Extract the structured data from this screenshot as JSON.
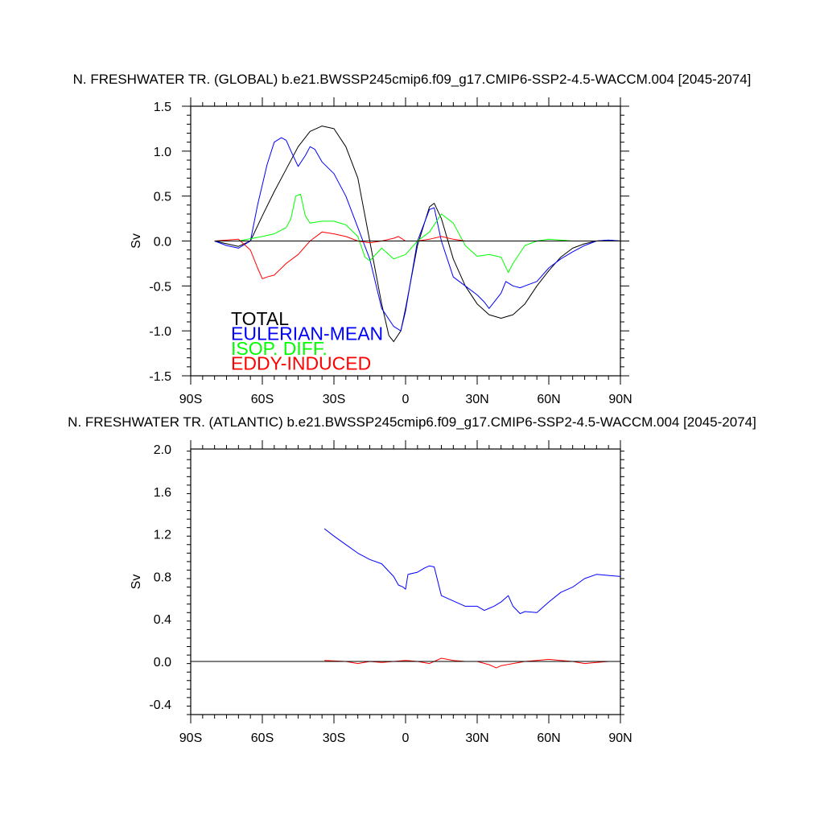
{
  "chart_data": [
    {
      "type": "line",
      "title": "N. FRESHWATER TR. (GLOBAL) b.e21.BWSSP245cmip6.f09_g17.CMIP6-SSP2-4.5-WACCM.004 [2045-2074]",
      "xlabel": "",
      "ylabel": "Sv",
      "xlim": [
        -90,
        90
      ],
      "ylim": [
        -1.5,
        1.5
      ],
      "xticks": [
        -90,
        -60,
        -30,
        0,
        30,
        60,
        90
      ],
      "xtick_labels": [
        "90S",
        "60S",
        "30S",
        "0",
        "30N",
        "60N",
        "90N"
      ],
      "yticks": [
        -1.5,
        -1.0,
        -0.5,
        0.0,
        0.5,
        1.0,
        1.5
      ],
      "ytick_labels": [
        "-1.5",
        "-1.0",
        "-0.5",
        "0.0",
        "0.5",
        "1.0",
        "1.5"
      ],
      "legend": "bottom-left",
      "series": [
        {
          "name": "TOTAL",
          "color": "#000000",
          "x": [
            -80,
            -75,
            -70,
            -65,
            -60,
            -55,
            -50,
            -45,
            -40,
            -35,
            -30,
            -25,
            -20,
            -15,
            -10,
            -7,
            -5,
            -2,
            0,
            5,
            10,
            12,
            15,
            20,
            25,
            30,
            35,
            40,
            45,
            50,
            55,
            60,
            65,
            70,
            75,
            80,
            85,
            90
          ],
          "y": [
            0.0,
            -0.03,
            -0.06,
            0.0,
            0.28,
            0.55,
            0.8,
            1.05,
            1.22,
            1.28,
            1.25,
            1.05,
            0.7,
            0.0,
            -0.7,
            -1.05,
            -1.12,
            -1.0,
            -0.75,
            -0.05,
            0.38,
            0.42,
            0.25,
            -0.2,
            -0.5,
            -0.7,
            -0.82,
            -0.86,
            -0.82,
            -0.7,
            -0.5,
            -0.33,
            -0.18,
            -0.08,
            -0.03,
            0.0,
            0.01,
            0.0
          ]
        },
        {
          "name": "EULERIAN-MEAN",
          "color": "#0000ff",
          "x": [
            -80,
            -75,
            -70,
            -65,
            -62,
            -58,
            -55,
            -52,
            -50,
            -48,
            -45,
            -42,
            -40,
            -38,
            -35,
            -30,
            -25,
            -20,
            -15,
            -10,
            -5,
            -2,
            0,
            5,
            10,
            12,
            15,
            20,
            25,
            30,
            33,
            35,
            38,
            40,
            42,
            45,
            48,
            50,
            55,
            60,
            65,
            70,
            75,
            80,
            85,
            90
          ],
          "y": [
            0.0,
            -0.05,
            -0.08,
            0.0,
            0.4,
            0.85,
            1.1,
            1.15,
            1.12,
            1.0,
            0.83,
            0.95,
            1.05,
            1.02,
            0.88,
            0.75,
            0.5,
            0.15,
            -0.2,
            -0.75,
            -0.95,
            -1.0,
            -0.78,
            0.0,
            0.35,
            0.37,
            0.0,
            -0.4,
            -0.5,
            -0.6,
            -0.68,
            -0.75,
            -0.65,
            -0.58,
            -0.45,
            -0.5,
            -0.52,
            -0.5,
            -0.45,
            -0.3,
            -0.2,
            -0.12,
            -0.05,
            0.0,
            0.01,
            0.0
          ]
        },
        {
          "name": "ISOP. DIFF.",
          "color": "#00ff00",
          "x": [
            -80,
            -70,
            -60,
            -55,
            -50,
            -48,
            -46,
            -44,
            -42,
            -40,
            -35,
            -30,
            -25,
            -20,
            -17,
            -15,
            -10,
            -5,
            0,
            5,
            10,
            15,
            20,
            25,
            30,
            35,
            40,
            43,
            45,
            50,
            55,
            60,
            70,
            80,
            90
          ],
          "y": [
            0.0,
            0.0,
            0.05,
            0.08,
            0.15,
            0.25,
            0.5,
            0.52,
            0.28,
            0.2,
            0.22,
            0.22,
            0.18,
            0.05,
            -0.18,
            -0.22,
            -0.08,
            -0.2,
            -0.15,
            0.0,
            0.1,
            0.3,
            0.2,
            -0.05,
            -0.17,
            -0.15,
            -0.18,
            -0.35,
            -0.25,
            -0.05,
            0.0,
            0.02,
            0.0,
            0.0,
            0.0
          ]
        },
        {
          "name": "EDDY-INDUCED",
          "color": "#ff0000",
          "x": [
            -80,
            -70,
            -65,
            -62,
            -60,
            -58,
            -55,
            -50,
            -45,
            -40,
            -35,
            -30,
            -25,
            -20,
            -15,
            -10,
            -5,
            -3,
            0,
            5,
            10,
            15,
            20,
            25,
            30,
            40,
            50,
            60,
            70,
            80,
            90
          ],
          "y": [
            0.0,
            0.02,
            -0.1,
            -0.3,
            -0.42,
            -0.4,
            -0.38,
            -0.25,
            -0.15,
            0.0,
            0.1,
            0.08,
            0.05,
            0.0,
            -0.02,
            0.0,
            0.03,
            0.05,
            0.0,
            0.0,
            0.02,
            0.05,
            0.02,
            0.0,
            0.0,
            0.0,
            0.0,
            0.0,
            0.0,
            0.0,
            0.0
          ]
        },
        {
          "name": "",
          "color": "#000000",
          "x": [
            -80,
            90
          ],
          "y": [
            0.0,
            0.0
          ]
        }
      ]
    },
    {
      "type": "line",
      "title": "N. FRESHWATER TR. (ATLANTIC) b.e21.BWSSP245cmip6.f09_g17.CMIP6-SSP2-4.5-WACCM.004 [2045-2074]",
      "xlabel": "",
      "ylabel": "Sv",
      "xlim": [
        -90,
        90
      ],
      "ylim": [
        -0.5,
        2.0
      ],
      "xticks": [
        -90,
        -60,
        -30,
        0,
        30,
        60,
        90
      ],
      "xtick_labels": [
        "90S",
        "60S",
        "30S",
        "0",
        "30N",
        "60N",
        "90N"
      ],
      "yticks": [
        -0.4,
        0.0,
        0.4,
        0.8,
        1.2,
        1.6,
        2.0
      ],
      "ytick_labels": [
        "-0.4",
        "0.0",
        "0.4",
        "0.8",
        "1.2",
        "1.6",
        "2.0"
      ],
      "series": [
        {
          "name": "EULERIAN-MEAN",
          "color": "#0000ff",
          "x": [
            -34,
            -30,
            -25,
            -20,
            -15,
            -10,
            -5,
            -3,
            -1,
            0,
            1,
            5,
            8,
            10,
            12,
            15,
            20,
            25,
            30,
            33,
            35,
            37,
            40,
            43,
            45,
            48,
            50,
            55,
            60,
            65,
            70,
            75,
            80,
            85,
            90
          ],
          "y": [
            1.25,
            1.18,
            1.1,
            1.02,
            0.96,
            0.92,
            0.8,
            0.72,
            0.7,
            0.68,
            0.82,
            0.84,
            0.88,
            0.9,
            0.89,
            0.62,
            0.57,
            0.52,
            0.52,
            0.48,
            0.5,
            0.52,
            0.56,
            0.62,
            0.52,
            0.45,
            0.47,
            0.46,
            0.56,
            0.65,
            0.7,
            0.78,
            0.82,
            0.81,
            0.8
          ]
        },
        {
          "name": "EDDY-INDUCED",
          "color": "#ff0000",
          "x": [
            -34,
            -25,
            -20,
            -15,
            -10,
            -5,
            0,
            5,
            10,
            15,
            20,
            25,
            30,
            35,
            38,
            40,
            45,
            50,
            55,
            60,
            65,
            70,
            75,
            80,
            85,
            90
          ],
          "y": [
            0.01,
            0.0,
            -0.02,
            0.0,
            -0.01,
            0.0,
            0.01,
            0.0,
            -0.02,
            0.03,
            0.01,
            0.0,
            0.0,
            -0.03,
            -0.06,
            -0.04,
            -0.02,
            0.0,
            0.01,
            0.02,
            0.01,
            0.0,
            -0.02,
            -0.01,
            0.0,
            0.0
          ]
        },
        {
          "name": "",
          "color": "#000000",
          "x": [
            -90,
            90
          ],
          "y": [
            0.0,
            0.0
          ]
        }
      ]
    }
  ]
}
